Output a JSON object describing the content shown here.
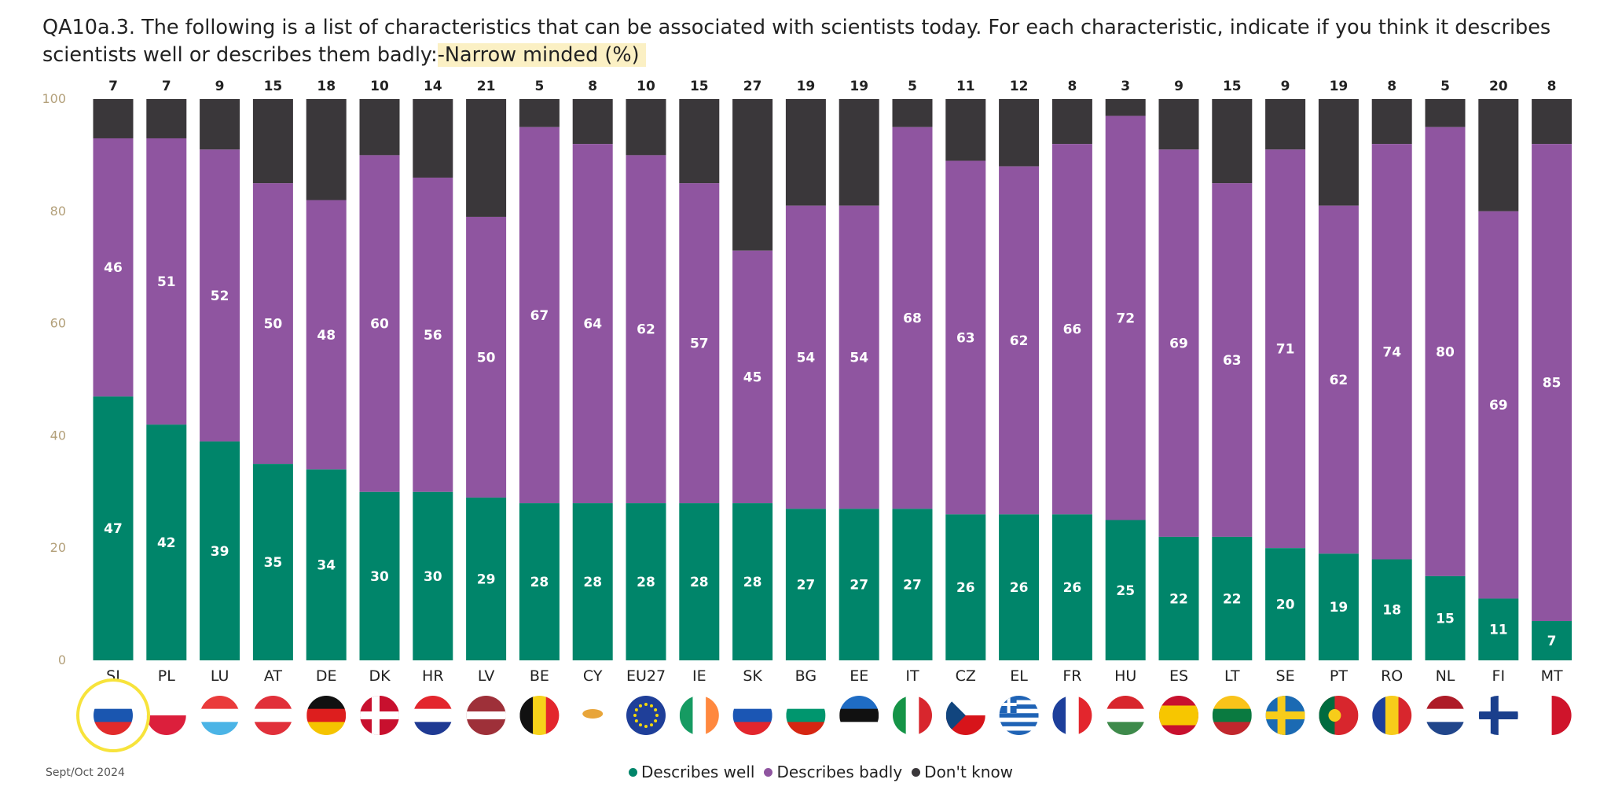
{
  "title": {
    "prefix": "QA10a.3. The following is a list of characteristics that can be associated with scientists today. For each characteristic, indicate if you think it describes scientists well or describes them badly:",
    "highlight": "-Narrow minded (%)"
  },
  "footnote": "Sept/Oct 2024",
  "colors": {
    "well": "#00856a",
    "badly": "#8f55a0",
    "dontknow": "#3a373a",
    "highlight_ring": "#f7e33b"
  },
  "legend": {
    "items": [
      {
        "key": "well",
        "label": "Describes well"
      },
      {
        "key": "badly",
        "label": "Describes badly"
      },
      {
        "key": "dontknow",
        "label": "Don't know"
      }
    ]
  },
  "chart_data": {
    "type": "bar",
    "stacked": true,
    "ylim": [
      0,
      100
    ],
    "yticks": [
      0,
      20,
      40,
      60,
      80,
      100
    ],
    "grid": false,
    "legend_position": "bottom",
    "categories": [
      "SI",
      "PL",
      "LU",
      "AT",
      "DE",
      "DK",
      "HR",
      "LV",
      "BE",
      "CY",
      "EU27",
      "IE",
      "SK",
      "BG",
      "EE",
      "IT",
      "CZ",
      "EL",
      "FR",
      "HU",
      "ES",
      "LT",
      "SE",
      "PT",
      "RO",
      "NL",
      "FI",
      "MT"
    ],
    "highlighted_category": "SI",
    "series": [
      {
        "key": "well",
        "name": "Describes well",
        "values": [
          47,
          42,
          39,
          35,
          34,
          30,
          30,
          29,
          28,
          28,
          28,
          28,
          28,
          27,
          27,
          27,
          26,
          26,
          26,
          25,
          22,
          22,
          20,
          19,
          18,
          15,
          11,
          7
        ]
      },
      {
        "key": "badly",
        "name": "Describes badly",
        "values": [
          46,
          51,
          52,
          50,
          48,
          60,
          56,
          50,
          67,
          64,
          62,
          57,
          45,
          54,
          54,
          68,
          63,
          62,
          66,
          72,
          69,
          63,
          71,
          62,
          74,
          80,
          69,
          85
        ]
      },
      {
        "key": "dontknow",
        "name": "Don't know",
        "values": [
          7,
          7,
          9,
          15,
          18,
          10,
          14,
          21,
          5,
          8,
          10,
          15,
          27,
          19,
          19,
          5,
          11,
          12,
          8,
          3,
          9,
          15,
          9,
          19,
          8,
          5,
          20,
          8
        ]
      }
    ]
  }
}
